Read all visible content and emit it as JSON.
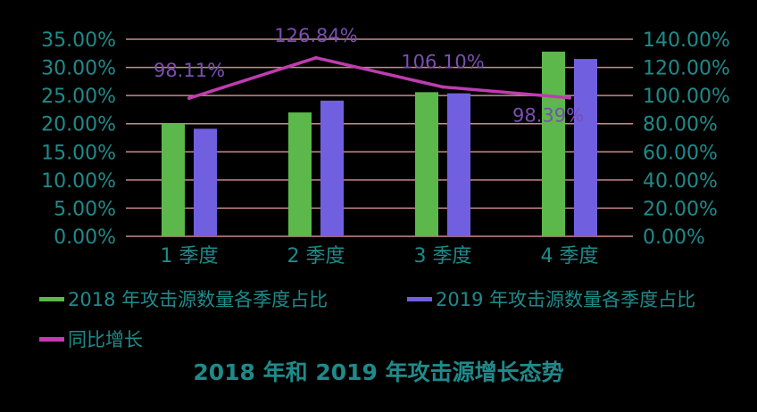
{
  "chart_data": {
    "type": "bar",
    "title": "2018 年和 2019 年攻击源增长态势",
    "categories": [
      "1 季度",
      "2 季度",
      "3 季度",
      "4 季度"
    ],
    "series": [
      {
        "name": "2018 年攻击源数量各季度占比",
        "type": "bar",
        "axis": "left",
        "color": "#5cb84a",
        "values": [
          20.0,
          22.0,
          25.6,
          32.8
        ]
      },
      {
        "name": "2019 年攻击源数量各季度占比",
        "type": "bar",
        "axis": "left",
        "color": "#7060e0",
        "values": [
          19.1,
          24.1,
          25.4,
          31.5
        ]
      },
      {
        "name": "同比增长",
        "type": "line",
        "axis": "right",
        "color": "#c03cb0",
        "values": [
          98.11,
          126.84,
          106.1,
          98.39
        ],
        "labels": [
          "98.11%",
          "126.84%",
          "106.10%",
          "98.39%"
        ]
      }
    ],
    "yleft": {
      "ylim": [
        0,
        35
      ],
      "ticks": [
        "0.00%",
        "5.00%",
        "10.00%",
        "15.00%",
        "20.00%",
        "25.00%",
        "30.00%",
        "35.00%"
      ]
    },
    "yright": {
      "ylim": [
        0,
        140
      ],
      "ticks": [
        "0.00%",
        "20.00%",
        "40.00%",
        "60.00%",
        "80.00%",
        "100.00%",
        "120.00%",
        "140.00%"
      ]
    },
    "grid": true,
    "legend_position": "bottom",
    "colors": {
      "background": "#000000",
      "text": "#1f8a8a",
      "gridline": "#c98a8a",
      "label": "#7a4fb0"
    }
  }
}
